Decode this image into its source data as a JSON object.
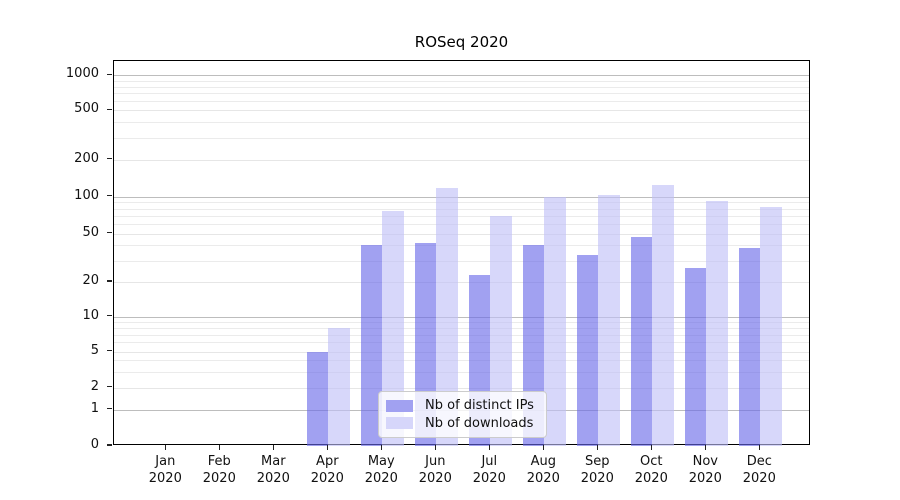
{
  "title": "ROSeq 2020",
  "chart_data": {
    "type": "bar",
    "title": "ROSeq 2020",
    "categories": [
      "Jan 2020",
      "Feb 2020",
      "Mar 2020",
      "Apr 2020",
      "May 2020",
      "Jun 2020",
      "Jul 2020",
      "Aug 2020",
      "Sep 2020",
      "Oct 2020",
      "Nov 2020",
      "Dec 2020"
    ],
    "month_labels": [
      "Jan",
      "Feb",
      "Mar",
      "Apr",
      "May",
      "Jun",
      "Jul",
      "Aug",
      "Sep",
      "Oct",
      "Nov",
      "Dec"
    ],
    "year": "2020",
    "series": [
      {
        "name": "Nb of distinct IPs",
        "fill": "rgba(103,103,233,0.62)",
        "legend_color": "#a1a1f1",
        "values": [
          0,
          0,
          0,
          5,
          40,
          42,
          23,
          40,
          33,
          47,
          26,
          38
        ]
      },
      {
        "name": "Nb of downloads",
        "fill": "rgba(190,190,247,0.62)",
        "legend_color": "#d6d6fa",
        "values": [
          0,
          0,
          0,
          8,
          76,
          118,
          70,
          100,
          103,
          124,
          93,
          82
        ]
      }
    ],
    "ytick_labels": [
      "0",
      "1",
      "2",
      "5",
      "10",
      "20",
      "50",
      "100",
      "200",
      "500",
      "1000"
    ],
    "yticks": [
      0,
      1,
      2,
      5,
      10,
      20,
      50,
      100,
      200,
      500,
      1000
    ],
    "ylim": [
      0,
      1300
    ],
    "yscale": "log-like with 0 baseline",
    "grid": "horizontal major and minor gridlines",
    "legend_position": "inside plot, lower center",
    "colors": {
      "bar_distinct_ips": "#a1a1f1",
      "bar_downloads": "#d6d6fa",
      "grid_major": "#bdbdbd",
      "grid_minor": "#ebebeb",
      "axis_frame": "#000000"
    }
  }
}
